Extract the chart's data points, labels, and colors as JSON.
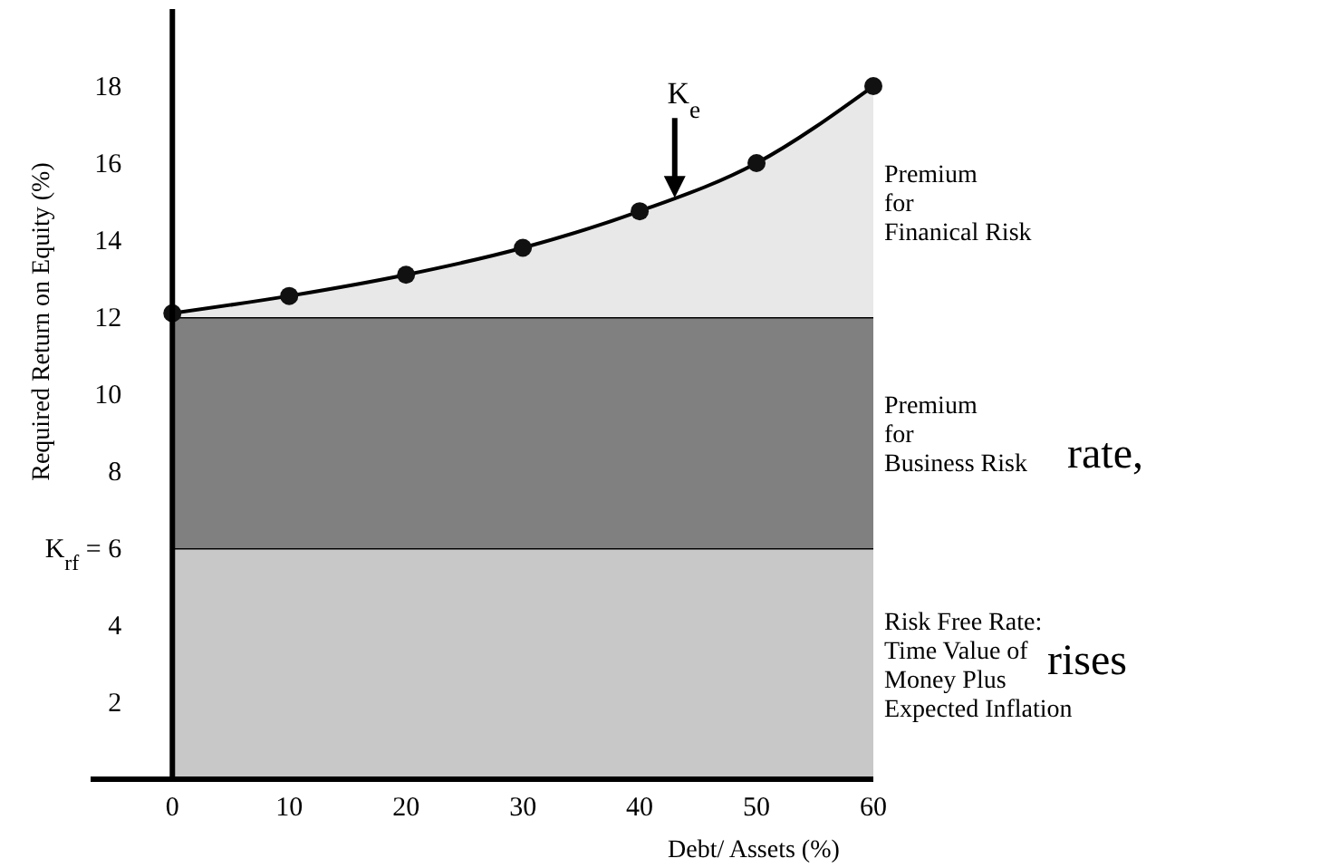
{
  "chart_data": {
    "type": "area",
    "stacked": true,
    "xlabel": "Debt/ Assets (%)",
    "ylabel": "Required Return on Equity (%)",
    "x": [
      0,
      10,
      20,
      30,
      40,
      50,
      60
    ],
    "xlim": [
      -7,
      60
    ],
    "xticks": [
      0,
      10,
      20,
      30,
      40,
      50,
      60
    ],
    "ylim": [
      0,
      20
    ],
    "yticks": [
      2,
      4,
      {
        "value": 6,
        "label": "K$_{rf}$ = 6"
      },
      8,
      10,
      12,
      14,
      16,
      18
    ],
    "series": [
      {
        "name": "Risk Free Rate:\nTime Value of\nMoney Plus\nExpected Inflation",
        "color": "#c8c8c8",
        "values": [
          6,
          6,
          6,
          6,
          6,
          6,
          6
        ]
      },
      {
        "name": "Premium\nfor\nBusiness Risk",
        "color": "#808080",
        "values": [
          6,
          6,
          6,
          6,
          6,
          6,
          6
        ]
      },
      {
        "name": "Premium\nfor\nFinanical Risk",
        "color": "#e8e8e8",
        "values": [
          0.1,
          0.55,
          1.1,
          1.8,
          2.75,
          4,
          6
        ],
        "marker": "circle"
      }
    ],
    "annotations": [
      {
        "text": "K$_{e}$",
        "x": 43,
        "y": 15.1
      },
      "rate,",
      "rises"
    ],
    "grid": false
  }
}
